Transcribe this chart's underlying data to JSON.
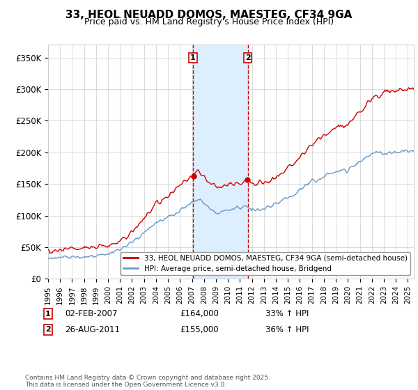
{
  "title": "33, HEOL NEUADD DOMOS, MAESTEG, CF34 9GA",
  "subtitle": "Price paid vs. HM Land Registry's House Price Index (HPI)",
  "ylabel_ticks": [
    "£0",
    "£50K",
    "£100K",
    "£150K",
    "£200K",
    "£250K",
    "£300K",
    "£350K"
  ],
  "ytick_values": [
    0,
    50000,
    100000,
    150000,
    200000,
    250000,
    300000,
    350000
  ],
  "ylim": [
    0,
    370000
  ],
  "xlim_start": 1995.0,
  "xlim_end": 2025.5,
  "sale1_date": 2007.085,
  "sale1_price": 164000,
  "sale1_label": "02-FEB-2007",
  "sale1_pct": "33% ↑ HPI",
  "sale2_date": 2011.648,
  "sale2_price": 155000,
  "sale2_label": "26-AUG-2011",
  "sale2_pct": "36% ↑ HPI",
  "line1_color": "#cc0000",
  "line2_color": "#6699cc",
  "shade_color": "#ddeeff",
  "vline_color": "#cc0000",
  "legend1_label": "33, HEOL NEUADD DOMOS, MAESTEG, CF34 9GA (semi-detached house)",
  "legend2_label": "HPI: Average price, semi-detached house, Bridgend",
  "footnote": "Contains HM Land Registry data © Crown copyright and database right 2025.\nThis data is licensed under the Open Government Licence v3.0.",
  "background_color": "#ffffff",
  "grid_color": "#cccccc"
}
